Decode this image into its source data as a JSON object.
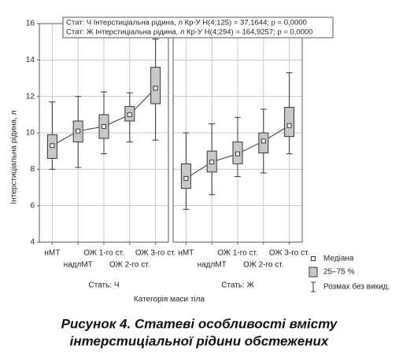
{
  "chart_data": {
    "type": "box",
    "ylabel": "Інтерстиціальна рідина, л",
    "xlabel": "Категорія маси тіла",
    "ylim": [
      4,
      16
    ],
    "yticks": [
      4,
      6,
      8,
      10,
      12,
      14,
      16
    ],
    "grid": true,
    "categories": [
      "нМТ",
      "надлМТ",
      "ОЖ 1-го ст.",
      "ОЖ 2-го ст.",
      "ОЖ 3-го ст."
    ],
    "box_color": "#c8c8c8",
    "line_color": "#333333",
    "panels": [
      {
        "name": "Стать: Ч",
        "whisker_low": [
          8.0,
          8.1,
          8.85,
          9.5,
          9.6
        ],
        "q1": [
          8.6,
          9.5,
          9.7,
          10.65,
          11.6
        ],
        "median": [
          9.3,
          10.1,
          10.35,
          11.0,
          12.45
        ],
        "q3": [
          9.9,
          10.65,
          11.0,
          11.45,
          13.6
        ],
        "whisker_high": [
          11.7,
          12.0,
          12.25,
          12.2,
          15.15
        ]
      },
      {
        "name": "Стать: Ж",
        "whisker_low": [
          5.8,
          6.6,
          7.6,
          7.8,
          8.85
        ],
        "q1": [
          6.95,
          7.85,
          8.3,
          8.9,
          9.8
        ],
        "median": [
          7.5,
          8.4,
          8.85,
          9.55,
          10.4
        ],
        "q3": [
          8.3,
          9.0,
          9.5,
          10.0,
          11.4
        ],
        "whisker_high": [
          10.0,
          10.5,
          10.85,
          11.3,
          13.3
        ]
      }
    ],
    "annotations": [
      "Стат: Ч Інтерстиціальна рідина, л Кр-У H(4;125) = 37,1644; p = 0,0000",
      "Стат: Ж Інтерстиціальна рідина, л Кр-У H(4;294) = 164,9257; p = 0,0000"
    ],
    "legend": [
      "Медіана",
      "25–75 %",
      "Розмах без викид."
    ],
    "caption": [
      "Рисунок 4. Статеві особливості вмісту",
      "інтерстиціальної рідини обстежених"
    ]
  }
}
